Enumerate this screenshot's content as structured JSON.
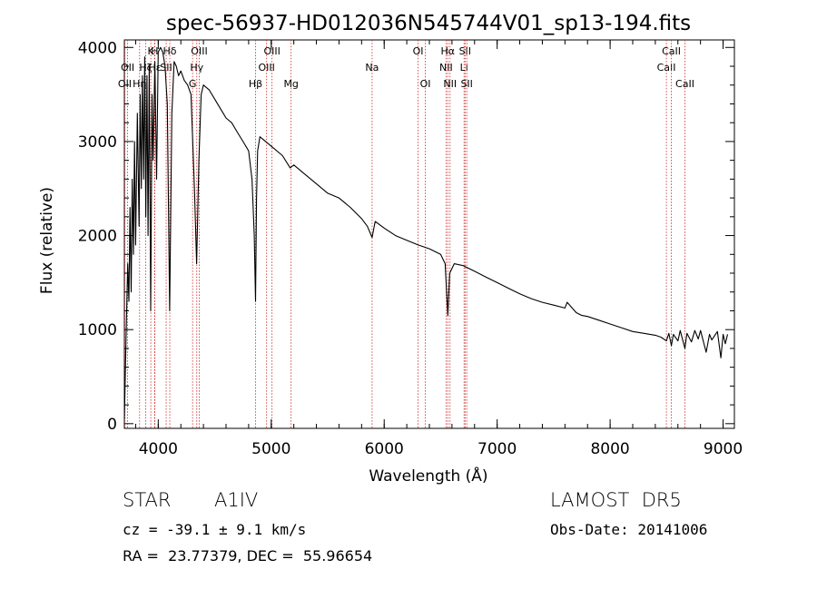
{
  "chart_data": {
    "type": "line",
    "title": "spec-56937-HD012036N545744V01_sp13-194.fits",
    "xlabel": "Wavelength (Å)",
    "ylabel": "Flux (relative)",
    "xlim": [
      3700,
      9100
    ],
    "ylim": [
      -50,
      4080
    ],
    "xticks": [
      4000,
      5000,
      6000,
      7000,
      8000,
      9000
    ],
    "yticks": [
      0,
      1000,
      2000,
      3000,
      4000
    ],
    "grid": false,
    "series": [
      {
        "x": [
          3700,
          3710,
          3720,
          3730,
          3740,
          3750,
          3760,
          3770,
          3780,
          3790,
          3800,
          3815,
          3830,
          3840,
          3850,
          3860,
          3870,
          3880,
          3890,
          3900,
          3910,
          3920,
          3933,
          3945,
          3955,
          3970,
          3985,
          4000,
          4020,
          4040,
          4060,
          4080,
          4101,
          4120,
          4140,
          4160,
          4180,
          4200,
          4230,
          4260,
          4290,
          4320,
          4340,
          4360,
          4380,
          4400,
          4450,
          4500,
          4550,
          4600,
          4650,
          4700,
          4750,
          4800,
          4830,
          4850,
          4861,
          4870,
          4880,
          4900,
          4950,
          5000,
          5100,
          5167,
          5200,
          5300,
          5400,
          5500,
          5600,
          5700,
          5800,
          5850,
          5893,
          5920,
          6000,
          6100,
          6200,
          6300,
          6400,
          6500,
          6540,
          6563,
          6580,
          6620,
          6700,
          6800,
          6900,
          7000,
          7100,
          7200,
          7300,
          7400,
          7500,
          7600,
          7620,
          7700,
          7750,
          7800,
          7900,
          8000,
          8100,
          8200,
          8300,
          8400,
          8450,
          8498,
          8520,
          8542,
          8560,
          8600,
          8620,
          8662,
          8680,
          8720,
          8750,
          8780,
          8800,
          8850,
          8880,
          8900,
          8950,
          8980,
          9000,
          9020,
          9040
        ],
        "y": [
          50,
          600,
          1200,
          1700,
          1300,
          2300,
          1400,
          2600,
          1800,
          3000,
          1900,
          3300,
          2100,
          3500,
          2500,
          3700,
          2600,
          3900,
          2200,
          3700,
          2000,
          3800,
          1200,
          3500,
          2800,
          3850,
          2600,
          3950,
          4000,
          3950,
          3800,
          3400,
          1200,
          3300,
          3850,
          3800,
          3700,
          3750,
          3650,
          3600,
          3500,
          2500,
          1700,
          2800,
          3500,
          3600,
          3550,
          3450,
          3350,
          3250,
          3200,
          3100,
          3000,
          2900,
          2600,
          2000,
          1300,
          2400,
          2900,
          3050,
          3000,
          2950,
          2850,
          2720,
          2750,
          2650,
          2550,
          2450,
          2400,
          2300,
          2180,
          2100,
          1980,
          2150,
          2080,
          2000,
          1950,
          1900,
          1860,
          1800,
          1700,
          1150,
          1600,
          1700,
          1680,
          1620,
          1560,
          1500,
          1440,
          1380,
          1330,
          1290,
          1260,
          1230,
          1290,
          1180,
          1150,
          1140,
          1100,
          1060,
          1020,
          980,
          960,
          940,
          920,
          880,
          960,
          830,
          950,
          880,
          990,
          800,
          960,
          870,
          990,
          900,
          990,
          760,
          950,
          890,
          980,
          700,
          950,
          850,
          950
        ]
      }
    ],
    "lines": [
      {
        "wavelength": 3704,
        "label": "OII",
        "row": 2
      },
      {
        "wavelength": 3729,
        "label": "OII",
        "row": 1
      },
      {
        "wavelength": 3835,
        "label": "Hη",
        "row": 2
      },
      {
        "wavelength": 3889,
        "label": "Hζ",
        "row": 1
      },
      {
        "wavelength": 3934,
        "label": "K",
        "row": 0
      },
      {
        "wavelength": 3968,
        "label": "H",
        "row": 0
      },
      {
        "wavelength": 3970,
        "label": "Hε",
        "row": 1
      },
      {
        "wavelength": 4070,
        "label": "SII",
        "row": 1
      },
      {
        "wavelength": 4102,
        "label": "Hδ",
        "row": 0
      },
      {
        "wavelength": 4304,
        "label": "G",
        "row": 2
      },
      {
        "wavelength": 4341,
        "label": "Hγ",
        "row": 1
      },
      {
        "wavelength": 4363,
        "label": "OIII",
        "row": 0
      },
      {
        "wavelength": 4861,
        "label": "Hβ",
        "row": 2
      },
      {
        "wavelength": 4959,
        "label": "OIII",
        "row": 1
      },
      {
        "wavelength": 5007,
        "label": "OIII",
        "row": 0
      },
      {
        "wavelength": 5176,
        "label": "Mg",
        "row": 2
      },
      {
        "wavelength": 5893,
        "label": "Na",
        "row": 1
      },
      {
        "wavelength": 6300,
        "label": "OI",
        "row": 0
      },
      {
        "wavelength": 6364,
        "label": "OI",
        "row": 2
      },
      {
        "wavelength": 6548,
        "label": "NII",
        "row": 1
      },
      {
        "wavelength": 6563,
        "label": "Hα",
        "row": 0
      },
      {
        "wavelength": 6583,
        "label": "NII",
        "row": 2
      },
      {
        "wavelength": 6707,
        "label": "Li",
        "row": 1
      },
      {
        "wavelength": 6716,
        "label": "SII",
        "row": 0
      },
      {
        "wavelength": 6731,
        "label": "SII",
        "row": 2
      },
      {
        "wavelength": 8498,
        "label": "CaII",
        "row": 1
      },
      {
        "wavelength": 8542,
        "label": "CaII",
        "row": 0
      },
      {
        "wavelength": 8662,
        "label": "CaII",
        "row": 2
      }
    ],
    "colors": {
      "spectrum": "#000000",
      "line_markers": "#cc2222",
      "axes": "#000000"
    }
  },
  "info": {
    "object_class": "STAR",
    "subclass": "A1IV",
    "survey": "LAMOST  DR5",
    "cz": "cz = -39.1 ± 9.1 km/s",
    "obs_date": "Obs-Date: 20141006",
    "coords": "RA =  23.77379, DEC =  55.96654"
  }
}
